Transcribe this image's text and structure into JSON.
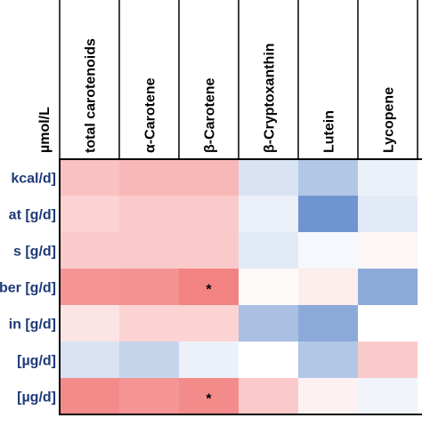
{
  "chart_data": {
    "type": "heatmap",
    "unit_label": "µmol/L",
    "columns": [
      "total carotenoids",
      "α-Carotene",
      "β-Carotene",
      "β-Cryptoxanthin",
      "Lutein",
      "Lycopene"
    ],
    "rows": [
      "kcal/d]",
      "at [g/d]",
      "s [g/d]",
      "ber [g/d]",
      "in [g/d]",
      "[µg/d]",
      "[µg/d]"
    ],
    "values": [
      [
        0.35,
        0.4,
        0.4,
        -0.2,
        -0.4,
        -0.1
      ],
      [
        0.25,
        0.3,
        0.3,
        -0.1,
        -0.75,
        -0.15
      ],
      [
        0.3,
        0.3,
        0.3,
        -0.15,
        -0.05,
        0.05
      ],
      [
        0.6,
        0.62,
        0.7,
        0.03,
        0.1,
        -0.6
      ],
      [
        0.15,
        0.25,
        0.25,
        -0.45,
        -0.6,
        0.0
      ],
      [
        -0.2,
        -0.3,
        -0.1,
        0.0,
        -0.4,
        0.3
      ],
      [
        0.65,
        0.6,
        0.65,
        0.3,
        0.08,
        -0.08
      ]
    ],
    "significance": [
      [
        "",
        "",
        "",
        "",
        "",
        ""
      ],
      [
        "",
        "",
        "",
        "",
        "",
        ""
      ],
      [
        "",
        "",
        "",
        "",
        "",
        ""
      ],
      [
        "",
        "",
        "*",
        "",
        "",
        ""
      ],
      [
        "",
        "",
        "",
        "",
        "",
        ""
      ],
      [
        "",
        "",
        "",
        "",
        "",
        ""
      ],
      [
        "",
        "",
        "*",
        "",
        "",
        ""
      ]
    ],
    "colors": {
      "positive": "#ee4d4d",
      "negative": "#3f72c0",
      "neutral": "#ffffff",
      "border": "#000000",
      "label": "#1f3a78"
    }
  }
}
